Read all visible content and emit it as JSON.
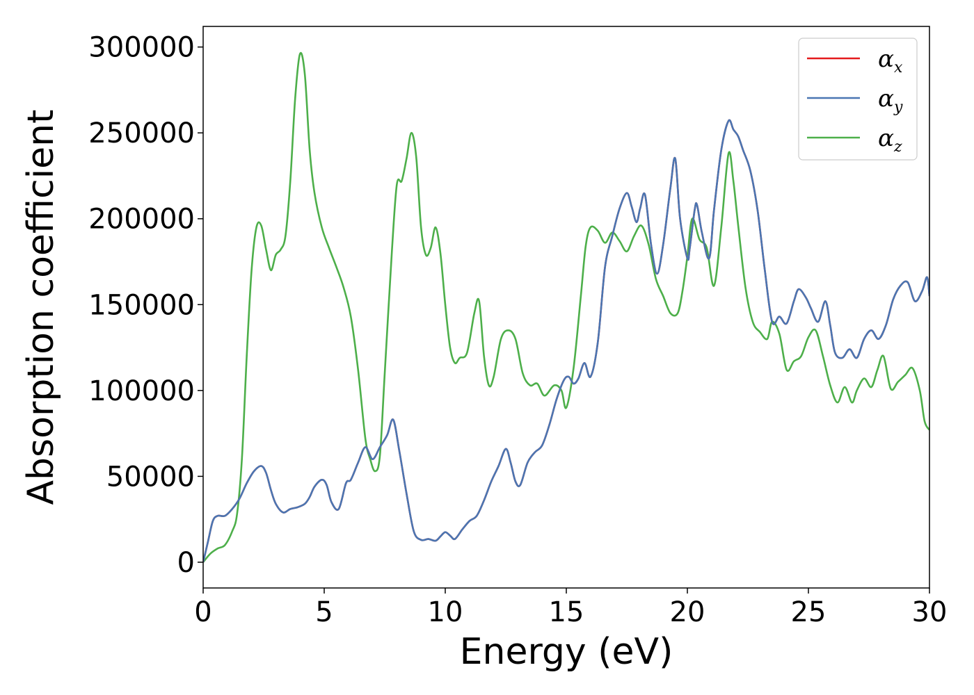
{
  "chart_data": {
    "type": "line",
    "title": "",
    "xlabel": "Energy (eV)",
    "ylabel": "Absorption coefficient",
    "xlim": [
      0,
      30
    ],
    "ylim": [
      -15000,
      312000
    ],
    "xticks": [
      0,
      5,
      10,
      15,
      20,
      25,
      30
    ],
    "xtick_labels": [
      "0",
      "5",
      "10",
      "15",
      "20",
      "25",
      "30"
    ],
    "yticks": [
      0,
      50000,
      100000,
      150000,
      200000,
      250000,
      300000
    ],
    "ytick_labels": [
      "0",
      "50000",
      "100000",
      "150000",
      "200000",
      "250000",
      "300000"
    ],
    "grid": false,
    "legend_position": "top-right",
    "series": [
      {
        "name": "αx",
        "symbol": "α",
        "subscript": "x",
        "color": "#e41a1c",
        "x": [
          0,
          0.2,
          0.4,
          0.6,
          0.9,
          1.2,
          1.5,
          1.8,
          2.1,
          2.4,
          2.6,
          2.8,
          3.0,
          3.3,
          3.6,
          3.9,
          4.2,
          4.4,
          4.6,
          4.9,
          5.1,
          5.3,
          5.6,
          5.9,
          6.1,
          6.4,
          6.7,
          7.0,
          7.3,
          7.6,
          7.85,
          8.1,
          8.4,
          8.7,
          9.0,
          9.3,
          9.6,
          9.8,
          10.0,
          10.2,
          10.4,
          10.7,
          11.0,
          11.3,
          11.6,
          11.9,
          12.2,
          12.5,
          12.7,
          12.9,
          13.1,
          13.4,
          13.7,
          14.0,
          14.3,
          14.6,
          14.9,
          15.1,
          15.3,
          15.5,
          15.75,
          16.0,
          16.3,
          16.6,
          16.9,
          17.2,
          17.5,
          17.7,
          17.9,
          18.05,
          18.25,
          18.5,
          18.75,
          19.0,
          19.3,
          19.5,
          19.7,
          20.0,
          20.1,
          20.3,
          20.4,
          20.6,
          20.9,
          21.1,
          21.4,
          21.7,
          21.9,
          22.1,
          22.3,
          22.6,
          22.9,
          23.2,
          23.5,
          23.8,
          24.1,
          24.4,
          24.6,
          24.9,
          25.1,
          25.4,
          25.7,
          25.9,
          26.1,
          26.4,
          26.7,
          27.0,
          27.3,
          27.6,
          27.9,
          28.2,
          28.5,
          28.8,
          29.1,
          29.4,
          29.7,
          29.9,
          30.0
        ],
        "y": [
          0,
          12000,
          24000,
          27000,
          27000,
          31000,
          37000,
          46000,
          53000,
          56000,
          52000,
          42000,
          34000,
          29000,
          31000,
          32000,
          34000,
          38000,
          44000,
          48000,
          45000,
          35000,
          31000,
          46000,
          48000,
          58000,
          67000,
          60000,
          67000,
          74000,
          83000,
          65000,
          40000,
          18000,
          13000,
          13500,
          12500,
          15000,
          17500,
          15500,
          13500,
          19000,
          24000,
          27000,
          36000,
          47000,
          56000,
          66000,
          58000,
          47000,
          45000,
          58000,
          64000,
          68000,
          80000,
          95000,
          106000,
          108000,
          104000,
          107000,
          116000,
          108000,
          128000,
          172000,
          190000,
          206000,
          215000,
          207000,
          198000,
          206000,
          214000,
          185000,
          168000,
          185000,
          218000,
          235000,
          200000,
          177000,
          183000,
          205000,
          208000,
          192000,
          177000,
          205000,
          240000,
          257000,
          252000,
          248000,
          240000,
          228000,
          205000,
          170000,
          140000,
          143000,
          139000,
          152000,
          159000,
          154000,
          148000,
          140000,
          152000,
          138000,
          122000,
          119000,
          124000,
          119000,
          130000,
          135000,
          130000,
          138000,
          153000,
          161000,
          163000,
          152000,
          158000,
          166000,
          155000
        ]
      },
      {
        "name": "αy",
        "symbol": "α",
        "subscript": "y",
        "color": "#4a76b2",
        "x": [
          0,
          0.2,
          0.4,
          0.6,
          0.9,
          1.2,
          1.5,
          1.8,
          2.1,
          2.4,
          2.6,
          2.8,
          3.0,
          3.3,
          3.6,
          3.9,
          4.2,
          4.4,
          4.6,
          4.9,
          5.1,
          5.3,
          5.6,
          5.9,
          6.1,
          6.4,
          6.7,
          7.0,
          7.3,
          7.6,
          7.85,
          8.1,
          8.4,
          8.7,
          9.0,
          9.3,
          9.6,
          9.8,
          10.0,
          10.2,
          10.4,
          10.7,
          11.0,
          11.3,
          11.6,
          11.9,
          12.2,
          12.5,
          12.7,
          12.9,
          13.1,
          13.4,
          13.7,
          14.0,
          14.3,
          14.6,
          14.9,
          15.1,
          15.3,
          15.5,
          15.75,
          16.0,
          16.3,
          16.6,
          16.9,
          17.2,
          17.5,
          17.7,
          17.9,
          18.05,
          18.25,
          18.5,
          18.75,
          19.0,
          19.3,
          19.5,
          19.7,
          20.0,
          20.1,
          20.3,
          20.4,
          20.6,
          20.9,
          21.1,
          21.4,
          21.7,
          21.9,
          22.1,
          22.3,
          22.6,
          22.9,
          23.2,
          23.5,
          23.8,
          24.1,
          24.4,
          24.6,
          24.9,
          25.1,
          25.4,
          25.7,
          25.9,
          26.1,
          26.4,
          26.7,
          27.0,
          27.3,
          27.6,
          27.9,
          28.2,
          28.5,
          28.8,
          29.1,
          29.4,
          29.7,
          29.9,
          30.0
        ],
        "y": [
          0,
          12000,
          24000,
          27000,
          27000,
          31000,
          37000,
          46000,
          53000,
          56000,
          52000,
          42000,
          34000,
          29000,
          31000,
          32000,
          34000,
          38000,
          44000,
          48000,
          45000,
          35000,
          31000,
          46000,
          48000,
          58000,
          67000,
          60000,
          67000,
          74000,
          83000,
          65000,
          40000,
          18000,
          13000,
          13500,
          12500,
          15000,
          17500,
          15500,
          13500,
          19000,
          24000,
          27000,
          36000,
          47000,
          56000,
          66000,
          58000,
          47000,
          45000,
          58000,
          64000,
          68000,
          80000,
          95000,
          106000,
          108000,
          104000,
          107000,
          116000,
          108000,
          128000,
          172000,
          190000,
          206000,
          215000,
          207000,
          198000,
          206000,
          214000,
          185000,
          168000,
          185000,
          218000,
          235000,
          200000,
          177000,
          183000,
          205000,
          208000,
          192000,
          177000,
          205000,
          240000,
          257000,
          252000,
          248000,
          240000,
          228000,
          205000,
          170000,
          140000,
          143000,
          139000,
          152000,
          159000,
          154000,
          148000,
          140000,
          152000,
          138000,
          122000,
          119000,
          124000,
          119000,
          130000,
          135000,
          130000,
          138000,
          153000,
          161000,
          163000,
          152000,
          158000,
          166000,
          155000
        ]
      },
      {
        "name": "αz",
        "symbol": "α",
        "subscript": "z",
        "color": "#4daf4a",
        "x": [
          0,
          0.3,
          0.6,
          0.9,
          1.2,
          1.4,
          1.6,
          1.8,
          2.0,
          2.2,
          2.4,
          2.6,
          2.8,
          3.0,
          3.2,
          3.4,
          3.6,
          3.8,
          4.0,
          4.2,
          4.4,
          4.6,
          4.9,
          5.2,
          5.5,
          5.8,
          6.1,
          6.4,
          6.7,
          6.9,
          7.1,
          7.3,
          7.5,
          7.8,
          8.0,
          8.2,
          8.4,
          8.6,
          8.8,
          9.0,
          9.2,
          9.4,
          9.6,
          9.8,
          10.0,
          10.2,
          10.4,
          10.6,
          10.9,
          11.2,
          11.4,
          11.6,
          11.8,
          12.0,
          12.3,
          12.6,
          12.9,
          13.2,
          13.5,
          13.8,
          14.1,
          14.5,
          14.8,
          15.0,
          15.3,
          15.6,
          15.8,
          16.0,
          16.3,
          16.6,
          16.9,
          17.2,
          17.5,
          17.8,
          18.1,
          18.4,
          18.7,
          19.0,
          19.3,
          19.6,
          19.8,
          20.0,
          20.2,
          20.5,
          20.8,
          21.1,
          21.4,
          21.7,
          21.9,
          22.1,
          22.4,
          22.7,
          23.0,
          23.3,
          23.5,
          23.8,
          24.1,
          24.4,
          24.7,
          25.0,
          25.3,
          25.6,
          25.9,
          26.2,
          26.5,
          26.8,
          27.0,
          27.3,
          27.6,
          27.85,
          28.1,
          28.4,
          28.7,
          29.0,
          29.3,
          29.6,
          29.8,
          30.0
        ],
        "y": [
          0,
          5000,
          8000,
          10000,
          18000,
          28000,
          60000,
          120000,
          170000,
          195000,
          196000,
          182000,
          170000,
          179000,
          182000,
          190000,
          222000,
          270000,
          296000,
          284000,
          240000,
          215000,
          195000,
          183000,
          172000,
          160000,
          143000,
          112000,
          72000,
          60000,
          53000,
          62000,
          110000,
          182000,
          220000,
          222000,
          235000,
          250000,
          236000,
          195000,
          179000,
          183000,
          195000,
          180000,
          150000,
          125000,
          116000,
          119000,
          122000,
          145000,
          152000,
          120000,
          103000,
          108000,
          130000,
          135000,
          130000,
          110000,
          103000,
          104000,
          97000,
          103000,
          100000,
          90000,
          113000,
          155000,
          184000,
          195000,
          193000,
          186000,
          192000,
          187000,
          181000,
          190000,
          196000,
          185000,
          165000,
          155000,
          145000,
          145000,
          158000,
          178000,
          200000,
          188000,
          183000,
          161000,
          195000,
          238000,
          222000,
          196000,
          160000,
          140000,
          134000,
          130000,
          140000,
          133000,
          112000,
          117000,
          120000,
          131000,
          135000,
          120000,
          103000,
          93000,
          102000,
          93000,
          100000,
          107000,
          102000,
          112000,
          120000,
          101000,
          105000,
          109000,
          113000,
          100000,
          82000,
          77000
        ]
      }
    ]
  }
}
